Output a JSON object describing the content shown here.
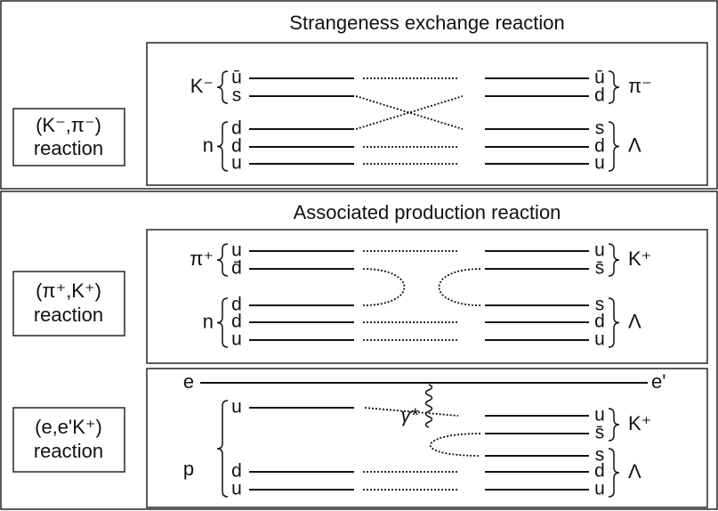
{
  "strangeness": {
    "title": "Strangeness exchange reaction",
    "reaction": [
      "(K⁻,π⁻)",
      "reaction"
    ],
    "in_particles": [
      "K⁻",
      "n"
    ],
    "in_quarks": [
      "ū",
      "s",
      "d",
      "d",
      "u"
    ],
    "out_quarks": [
      "ū",
      "d",
      "s",
      "d",
      "u"
    ],
    "out_particles": [
      "π⁻",
      "Λ"
    ]
  },
  "associated": {
    "title": "Associated production reaction",
    "pion": {
      "reaction": [
        "(π⁺,K⁺)",
        "reaction"
      ],
      "in_particles": [
        "π⁺",
        "n"
      ],
      "in_quarks": [
        "u",
        "d̄",
        "d",
        "d",
        "u"
      ],
      "out_quarks": [
        "u",
        "s̄",
        "s",
        "d",
        "u"
      ],
      "out_particles": [
        "K⁺",
        "Λ"
      ]
    },
    "electron": {
      "reaction": [
        "(e,e'K⁺)",
        "reaction"
      ],
      "beam_in": "e",
      "beam_out": "e'",
      "photon": "γ*",
      "in_particles": [
        "p"
      ],
      "in_quarks": [
        "u",
        "d",
        "u"
      ],
      "out_quarks": [
        "u",
        "s̄",
        "s",
        "d",
        "u"
      ],
      "out_particles": [
        "K⁺",
        "Λ"
      ]
    }
  }
}
